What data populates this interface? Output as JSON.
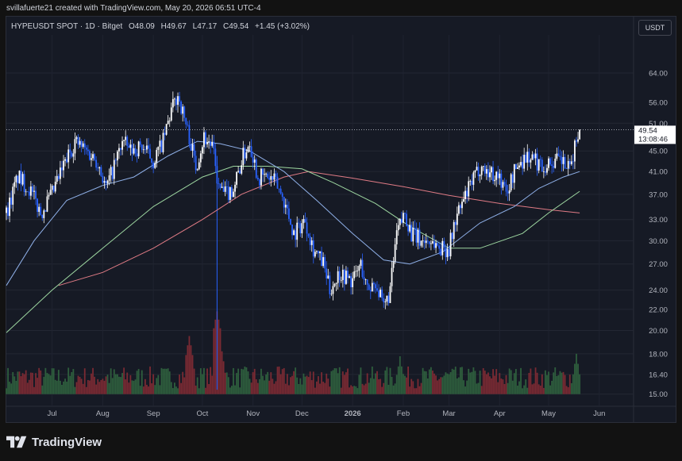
{
  "header": {
    "credit": "svillafuerte21 created with TradingView.com, May 20, 2026 06:51 UTC-4"
  },
  "legend": {
    "symbol": "HYPEUSDT SPOT · 1D · Bitget",
    "open": "O48.09",
    "high": "H49.67",
    "low": "L47.17",
    "close": "C49.54",
    "change": "+1.45 (+3.02%)"
  },
  "currency_label": "USDT",
  "price_badge": {
    "price": "49.54",
    "countdown": "13:08:46"
  },
  "footer": {
    "brand": "TradingView"
  },
  "colors": {
    "up": "#ffffff",
    "down": "#2962ff",
    "vol_up": "#2e5e3d",
    "vol_down": "#7a2a33",
    "ma_fast": "#8fb0e8",
    "ma_mid": "#9dd6a0",
    "ma_slow": "#e07b85",
    "vline": "#2962ff"
  },
  "chart_data": {
    "type": "candlestick",
    "y_scale": "log",
    "ylim": [
      14.2,
      76
    ],
    "y_ticks": [
      "64.00",
      "56.00",
      "51.00",
      "45.00",
      "41.00",
      "37.00",
      "33.00",
      "30.00",
      "27.00",
      "24.00",
      "22.00",
      "20.00",
      "18.00",
      "16.40",
      "15.00"
    ],
    "x_labels": [
      "Jul",
      "Aug",
      "Sep",
      "Oct",
      "Nov",
      "Dec",
      "2026",
      "Feb",
      "Mar",
      "Apr",
      "May",
      "Jun"
    ],
    "x_label_dates": [
      "2025-07-01",
      "2025-08-01",
      "2025-09-01",
      "2025-10-01",
      "2025-11-01",
      "2025-12-01",
      "2026-01-01",
      "2026-02-01",
      "2026-03-01",
      "2026-04-01",
      "2026-05-01",
      "2026-06-01"
    ],
    "x_range": [
      "2025-06-03",
      "2026-06-22"
    ],
    "last_price": 49.54,
    "vertical_line_date": "2025-10-10",
    "close_path": [
      [
        "2025-06-03",
        34
      ],
      [
        "2025-06-10",
        40
      ],
      [
        "2025-06-17",
        38
      ],
      [
        "2025-06-24",
        34
      ],
      [
        "2025-07-01",
        37
      ],
      [
        "2025-07-08",
        42
      ],
      [
        "2025-07-15",
        47
      ],
      [
        "2025-07-22",
        45
      ],
      [
        "2025-07-29",
        43
      ],
      [
        "2025-08-03",
        38
      ],
      [
        "2025-08-08",
        42
      ],
      [
        "2025-08-13",
        47
      ],
      [
        "2025-08-18",
        45
      ],
      [
        "2025-08-25",
        46
      ],
      [
        "2025-09-01",
        43
      ],
      [
        "2025-09-07",
        47
      ],
      [
        "2025-09-12",
        54
      ],
      [
        "2025-09-16",
        58
      ],
      [
        "2025-09-18",
        55
      ],
      [
        "2025-09-23",
        48
      ],
      [
        "2025-09-27",
        42
      ],
      [
        "2025-10-02",
        48
      ],
      [
        "2025-10-07",
        46
      ],
      [
        "2025-10-11",
        38
      ],
      [
        "2025-10-15",
        37
      ],
      [
        "2025-10-20",
        38
      ],
      [
        "2025-10-26",
        44
      ],
      [
        "2025-10-30",
        47
      ],
      [
        "2025-11-04",
        40
      ],
      [
        "2025-11-10",
        40
      ],
      [
        "2025-11-15",
        39
      ],
      [
        "2025-11-20",
        36
      ],
      [
        "2025-11-26",
        31
      ],
      [
        "2025-12-03",
        33
      ],
      [
        "2025-12-08",
        29
      ],
      [
        "2025-12-14",
        27
      ],
      [
        "2025-12-18",
        24
      ],
      [
        "2025-12-24",
        26
      ],
      [
        "2026-01-01",
        25
      ],
      [
        "2026-01-06",
        27
      ],
      [
        "2026-01-10",
        24
      ],
      [
        "2026-01-15",
        25
      ],
      [
        "2026-01-20",
        22
      ],
      [
        "2026-01-24",
        24
      ],
      [
        "2026-01-28",
        31
      ],
      [
        "2026-02-02",
        34
      ],
      [
        "2026-02-06",
        31
      ],
      [
        "2026-02-12",
        30
      ],
      [
        "2026-02-18",
        30
      ],
      [
        "2026-02-24",
        29
      ],
      [
        "2026-03-01",
        29
      ],
      [
        "2026-03-05",
        33
      ],
      [
        "2026-03-10",
        36
      ],
      [
        "2026-03-15",
        39
      ],
      [
        "2026-03-20",
        42
      ],
      [
        "2026-03-25",
        41
      ],
      [
        "2026-04-01",
        40
      ],
      [
        "2026-04-05",
        37
      ],
      [
        "2026-04-10",
        41
      ],
      [
        "2026-04-14",
        43
      ],
      [
        "2026-04-18",
        44
      ],
      [
        "2026-04-23",
        43
      ],
      [
        "2026-04-28",
        42
      ],
      [
        "2026-05-04",
        43
      ],
      [
        "2026-05-09",
        43
      ],
      [
        "2026-05-14",
        41
      ],
      [
        "2026-05-17",
        46
      ],
      [
        "2026-05-20",
        49.54
      ]
    ],
    "ma_fast": [
      [
        "2025-06-03",
        24.5
      ],
      [
        "2025-06-20",
        30
      ],
      [
        "2025-07-10",
        36
      ],
      [
        "2025-08-01",
        38.5
      ],
      [
        "2025-08-20",
        40
      ],
      [
        "2025-09-10",
        44
      ],
      [
        "2025-09-28",
        47
      ],
      [
        "2025-10-12",
        46.5
      ],
      [
        "2025-10-30",
        45
      ],
      [
        "2025-11-20",
        41
      ],
      [
        "2025-12-10",
        36
      ],
      [
        "2026-01-01",
        31
      ],
      [
        "2026-01-20",
        27.5
      ],
      [
        "2026-02-05",
        27
      ],
      [
        "2026-02-25",
        28.5
      ],
      [
        "2026-03-20",
        32.5
      ],
      [
        "2026-04-10",
        35
      ],
      [
        "2026-04-25",
        38
      ],
      [
        "2026-05-10",
        40
      ],
      [
        "2026-05-20",
        41
      ]
    ],
    "ma_mid": [
      [
        "2025-06-03",
        19.8
      ],
      [
        "2025-07-01",
        24
      ],
      [
        "2025-08-01",
        29
      ],
      [
        "2025-09-01",
        35
      ],
      [
        "2025-10-01",
        40
      ],
      [
        "2025-10-20",
        42
      ],
      [
        "2025-11-10",
        42
      ],
      [
        "2025-12-01",
        41.5
      ],
      [
        "2025-12-20",
        39
      ],
      [
        "2026-01-15",
        35.5
      ],
      [
        "2026-02-05",
        32
      ],
      [
        "2026-03-01",
        29
      ],
      [
        "2026-03-20",
        29
      ],
      [
        "2026-04-15",
        31
      ],
      [
        "2026-05-01",
        34
      ],
      [
        "2026-05-20",
        37.5
      ]
    ],
    "ma_slow": [
      [
        "2025-07-05",
        24.5
      ],
      [
        "2025-08-01",
        26
      ],
      [
        "2025-09-01",
        29
      ],
      [
        "2025-10-01",
        33
      ],
      [
        "2025-10-25",
        37
      ],
      [
        "2025-11-20",
        40
      ],
      [
        "2025-12-05",
        41
      ],
      [
        "2026-01-01",
        39.8
      ],
      [
        "2026-02-01",
        38.3
      ],
      [
        "2026-03-01",
        36.8
      ],
      [
        "2026-04-01",
        35.5
      ],
      [
        "2026-05-01",
        34.5
      ],
      [
        "2026-05-20",
        34
      ]
    ],
    "volume_spikes": [
      [
        "2025-09-23",
        19.5
      ],
      [
        "2025-10-10",
        21.8
      ],
      [
        "2025-10-12",
        19
      ],
      [
        "2026-01-30",
        17.8
      ],
      [
        "2026-05-18",
        18
      ]
    ],
    "volume_base": 15.0
  }
}
